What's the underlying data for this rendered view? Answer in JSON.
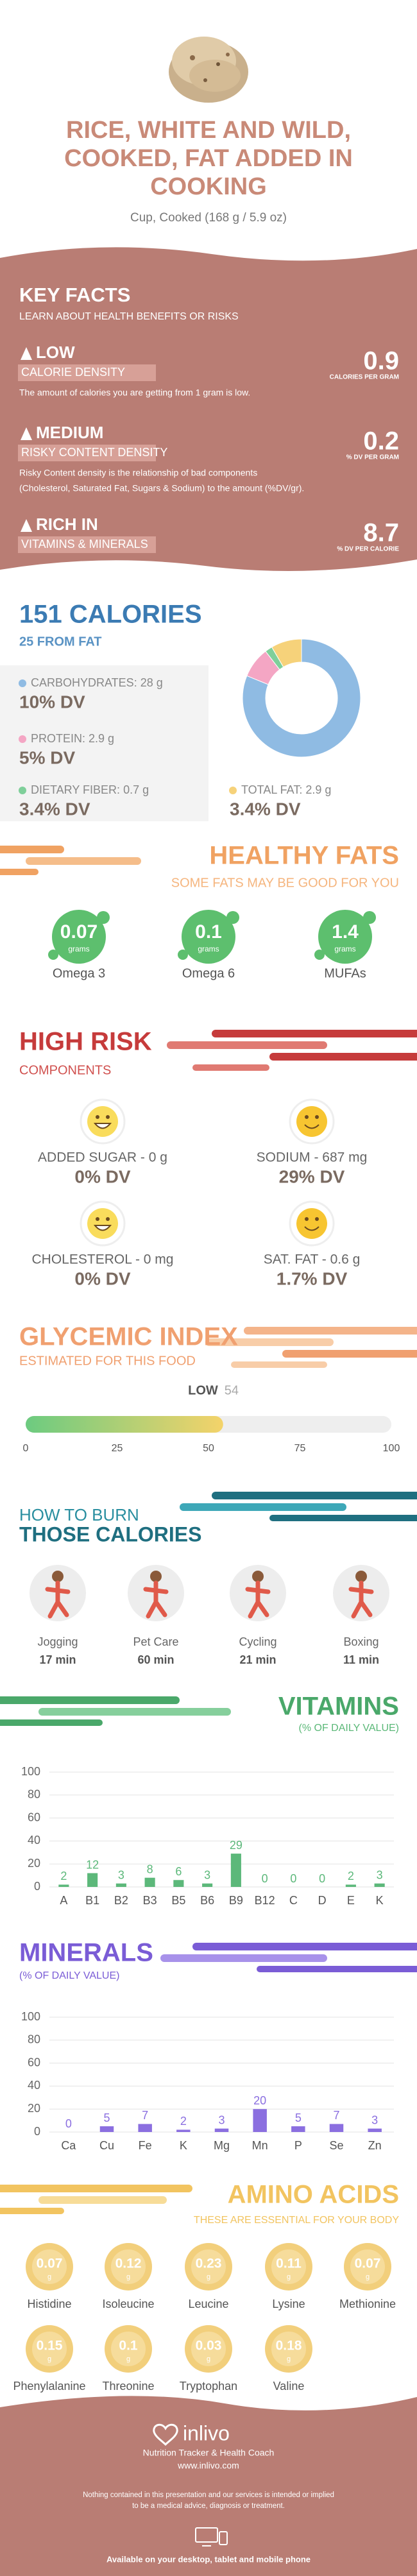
{
  "header": {
    "title_lines": [
      "RICE, WHITE AND WILD,",
      "COOKED, FAT ADDED IN",
      "COOKING"
    ],
    "serving": "Cup, Cooked (168 g / 5.9 oz)"
  },
  "key_facts": {
    "title": "KEY FACTS",
    "subtitle": "LEARN ABOUT HEALTH BENEFITS OR RISKS",
    "items": [
      {
        "level": "LOW",
        "label": "CALORIE DENSITY",
        "value": 0.9,
        "unit": "CALORIES PER GRAM",
        "description": [
          "The amount of calories you are getting from 1 gram is low."
        ]
      },
      {
        "level": "MEDIUM",
        "label": "RISKY CONTENT DENSITY",
        "value": 0.2,
        "unit": "% DV PER GRAM",
        "description": [
          "Risky Content density is the relationship of bad components",
          "(Cholesterol, Saturated Fat, Sugars & Sodium) to the amount (%DV/gr)."
        ]
      },
      {
        "level": "RICH IN",
        "label": "VITAMINS & MINERALS",
        "value": 8.7,
        "unit": "% DV PER CALORIE",
        "description": []
      }
    ]
  },
  "calories": {
    "title": "151 CALORIES",
    "subtitle": "25 FROM FAT"
  },
  "healthy_fats": {
    "title": "HEALTHY FATS",
    "subtitle": "SOME FATS MAY BE GOOD FOR YOU",
    "items": [
      {
        "value": 0.07,
        "unit": "grams",
        "name": "Omega 3"
      },
      {
        "value": 0.1,
        "unit": "grams",
        "name": "Omega 6"
      },
      {
        "value": 1.4,
        "unit": "grams",
        "name": "MUFAs"
      }
    ]
  },
  "high_risk": {
    "title": "HIGH RISK",
    "subtitle": "COMPONENTS",
    "items": [
      {
        "label": "ADDED SUGAR - 0 g",
        "dv": "0% DV"
      },
      {
        "label": "SODIUM - 687 mg",
        "dv": "29% DV"
      },
      {
        "label": "CHOLESTEROL - 0 mg",
        "dv": "0% DV"
      },
      {
        "label": "SAT. FAT - 0.6 g",
        "dv": "1.7% DV"
      }
    ]
  },
  "burn": {
    "title_lines": [
      "HOW TO BURN",
      "THOSE CALORIES"
    ],
    "activities": [
      {
        "name": "Jogging",
        "time": "17 min"
      },
      {
        "name": "Pet Care",
        "time": "60 min"
      },
      {
        "name": "Cycling",
        "time": "21 min"
      },
      {
        "name": "Boxing",
        "time": "11 min"
      }
    ]
  },
  "amino_acids": {
    "title": "AMINO ACIDS",
    "subtitle": "THESE ARE ESSENTIAL FOR YOUR BODY",
    "items": [
      {
        "value": 0.07,
        "unit": "g",
        "name": "Histidine"
      },
      {
        "value": 0.12,
        "unit": "g",
        "name": "Isoleucine"
      },
      {
        "value": 0.23,
        "unit": "g",
        "name": "Leucine"
      },
      {
        "value": 0.11,
        "unit": "g",
        "name": "Lysine"
      },
      {
        "value": 0.07,
        "unit": "g",
        "name": "Methionine"
      },
      {
        "value": 0.15,
        "unit": "g",
        "name": "Phenylalanine"
      },
      {
        "value": 0.1,
        "unit": "g",
        "name": "Threonine"
      },
      {
        "value": 0.03,
        "unit": "g",
        "name": "Tryptophan"
      },
      {
        "value": 0.18,
        "unit": "g",
        "name": "Valine"
      }
    ]
  },
  "footer": {
    "brand": "inlivo",
    "tagline": "Nutrition Tracker & Health Coach",
    "url": "www.inlivo.com",
    "disclaimer_lines": [
      "Nothing contained in this presentation and our services is intended or implied",
      "to be a medical advice, diagnosis or treatment."
    ],
    "availability": "Available on your desktop, tablet and mobile phone"
  },
  "chart_data": [
    {
      "type": "pie",
      "categories": [
        "CARBOHYDRATES:",
        "PROTEIN:",
        "DIETARY FIBER:",
        "TOTAL FAT:"
      ],
      "values": [
        28,
        2.9,
        0.7,
        2.9
      ],
      "value_labels": [
        "28 g",
        "2.9 g",
        "0.7 g",
        "2.9 g"
      ],
      "dv_labels": [
        "10% DV",
        "5% DV",
        "3.4% DV",
        "3.4% DV"
      ],
      "colors": [
        "#8fbbe3",
        "#f4a6c4",
        "#7fcf9a",
        "#f6d27a"
      ]
    },
    {
      "type": "gauge",
      "title": "GLYCEMIC INDEX",
      "subtitle": "ESTIMATED FOR THIS FOOD",
      "label": "LOW",
      "value": 54,
      "xlim": [
        0,
        100
      ],
      "xticks": [
        0,
        25,
        50,
        75,
        100
      ]
    },
    {
      "type": "bar",
      "title": "VITAMINS",
      "subtitle": "(% OF DAILY VALUE)",
      "categories": [
        "A",
        "B1",
        "B2",
        "B3",
        "B5",
        "B6",
        "B9",
        "B12",
        "C",
        "D",
        "E",
        "K"
      ],
      "values": [
        2,
        12,
        3,
        8,
        6,
        3,
        29,
        0,
        0,
        0,
        2,
        3
      ],
      "color": "#5cb87a",
      "ylim": [
        0,
        100
      ],
      "yticks": [
        0,
        20,
        40,
        60,
        80,
        100
      ],
      "grid": true
    },
    {
      "type": "bar",
      "title": "MINERALS",
      "subtitle": "(% OF DAILY VALUE)",
      "categories": [
        "Ca",
        "Cu",
        "Fe",
        "K",
        "Mg",
        "Mn",
        "P",
        "Se",
        "Zn"
      ],
      "values": [
        0,
        5,
        7,
        2,
        3,
        20,
        5,
        7,
        3
      ],
      "color": "#8b6fe0",
      "ylim": [
        0,
        100
      ],
      "yticks": [
        0,
        20,
        40,
        60,
        80,
        100
      ],
      "grid": true
    }
  ]
}
